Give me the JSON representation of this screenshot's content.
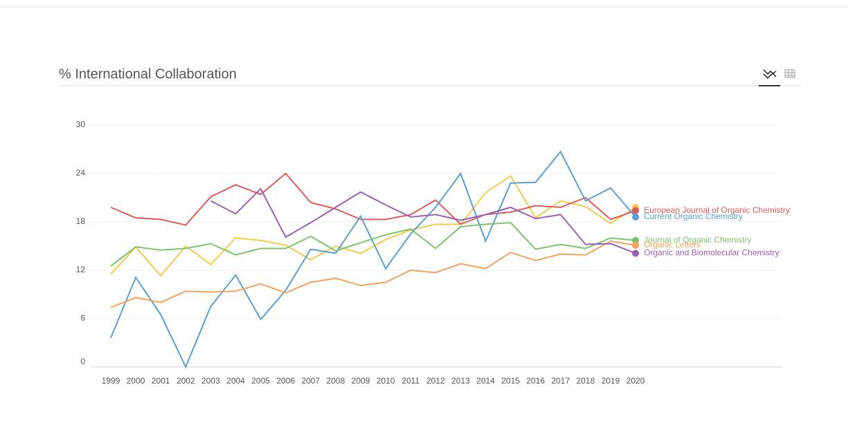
{
  "chart_data": {
    "type": "line",
    "title": "% International Collaboration",
    "categories": [
      "1999",
      "2000",
      "2001",
      "2002",
      "2003",
      "2004",
      "2005",
      "2006",
      "2007",
      "2008",
      "2009",
      "2010",
      "2011",
      "2012",
      "2013",
      "2014",
      "2015",
      "2016",
      "2017",
      "2018",
      "2019",
      "2020"
    ],
    "ylim": [
      0,
      30
    ],
    "yticks": [
      0,
      6,
      12,
      18,
      24,
      30
    ],
    "grid": true,
    "series": [
      {
        "color": "#f2c94c",
        "values": [
          11.5,
          14.9,
          11.3,
          15.0,
          12.7,
          16.0,
          15.7,
          15.1,
          13.3,
          15.0,
          14.1,
          15.8,
          17.0,
          17.7,
          17.7,
          21.6,
          23.7,
          18.5,
          20.6,
          19.9,
          17.8,
          19.8
        ]
      },
      {
        "name": "European Journal of Organic Chemistry",
        "color": "#e05a5a",
        "values": [
          19.8,
          18.5,
          18.3,
          17.6,
          21.1,
          22.6,
          21.4,
          24.0,
          20.4,
          19.6,
          18.3,
          18.3,
          18.9,
          20.7,
          17.7,
          18.9,
          19.2,
          20.0,
          19.8,
          21.0,
          18.3,
          19.4
        ]
      },
      {
        "name": "Current Organic Chemistry",
        "color": "#5a9fd4",
        "values": [
          3.6,
          11.1,
          6.5,
          0,
          7.5,
          11.4,
          5.9,
          9.5,
          14.6,
          14.1,
          18.7,
          12.2,
          16.5,
          19.8,
          24.0,
          15.6,
          22.8,
          22.9,
          26.7,
          20.6,
          22.2,
          18.6
        ]
      },
      {
        "name": "Journal of Organic Chemistry",
        "color": "#7cc36a",
        "values": [
          12.5,
          14.9,
          14.5,
          14.7,
          15.3,
          13.9,
          14.7,
          14.7,
          16.2,
          14.4,
          15.4,
          16.4,
          17.1,
          14.7,
          17.4,
          17.7,
          17.9,
          14.6,
          15.2,
          14.7,
          16.0,
          15.7
        ]
      },
      {
        "name": "Organic Letters",
        "color": "#f5a25d",
        "values": [
          7.4,
          8.6,
          8.0,
          9.4,
          9.3,
          9.4,
          10.3,
          9.2,
          10.5,
          11.0,
          10.1,
          10.5,
          12.0,
          11.7,
          12.8,
          12.2,
          14.2,
          13.2,
          14.0,
          13.9,
          15.6,
          15.1
        ]
      },
      {
        "name": "Organic and Biomolecular Chemistry",
        "color": "#9b5fb5",
        "values": [
          null,
          null,
          null,
          null,
          20.6,
          19.0,
          22.1,
          16.1,
          17.9,
          19.8,
          21.7,
          20.1,
          18.6,
          18.9,
          18.2,
          18.9,
          19.8,
          18.4,
          18.9,
          15.2,
          15.3,
          14.1
        ]
      }
    ]
  }
}
